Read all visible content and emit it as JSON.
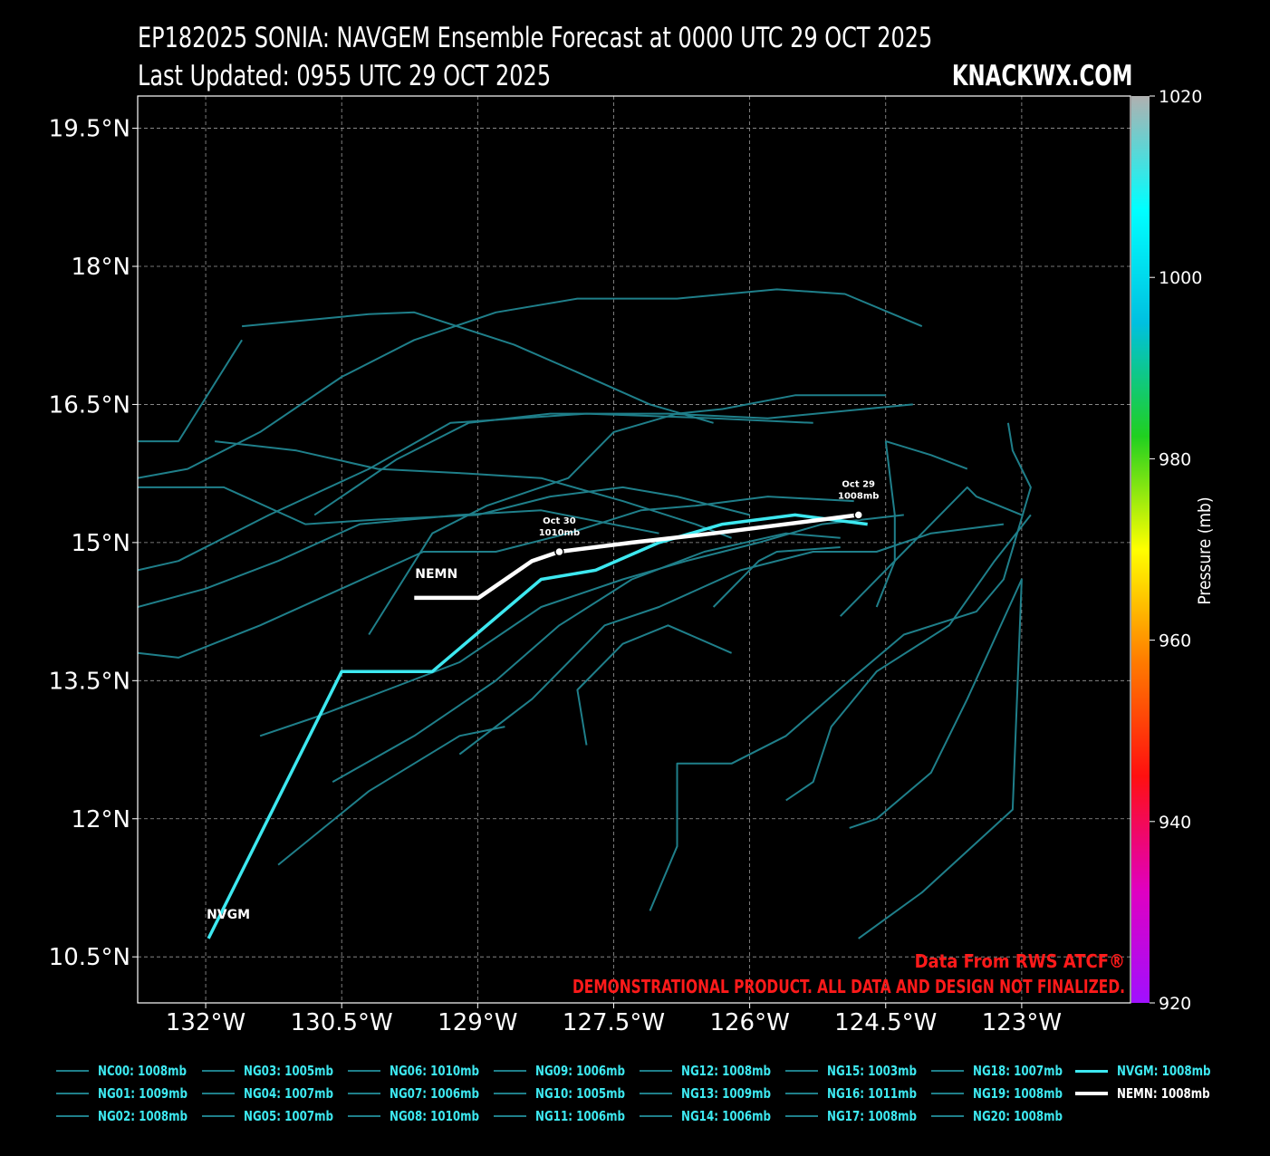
{
  "header": {
    "title_line1": "EP182025 SONIA: NAVGEM Ensemble Forecast at 0000 UTC 29 OCT 2025",
    "title_line2": "Last Updated: 0955 UTC 29 OCT 2025",
    "brand": "KNACKWX.COM"
  },
  "map": {
    "lon_range": [
      -132.75,
      -121.8
    ],
    "lat_range": [
      10.0,
      19.85
    ],
    "lon_ticks": [
      {
        "value": -132.0,
        "label": "132°W"
      },
      {
        "value": -130.5,
        "label": "130.5°W"
      },
      {
        "value": -129.0,
        "label": "129°W"
      },
      {
        "value": -127.5,
        "label": "127.5°W"
      },
      {
        "value": -126.0,
        "label": "126°W"
      },
      {
        "value": -124.5,
        "label": "124.5°W"
      },
      {
        "value": -123.0,
        "label": "123°W"
      }
    ],
    "lat_ticks": [
      {
        "value": 19.5,
        "label": "19.5°N"
      },
      {
        "value": 18.0,
        "label": "18°N"
      },
      {
        "value": 16.5,
        "label": "16.5°N"
      },
      {
        "value": 15.0,
        "label": "15°N"
      },
      {
        "value": 13.5,
        "label": "13.5°N"
      },
      {
        "value": 12.0,
        "label": "12°N"
      },
      {
        "value": 10.5,
        "label": "10.5°N"
      }
    ],
    "grid": true,
    "ensemble_color": "#1f7f8a",
    "nvgm_color": "#3de8f0",
    "nemn_color": "#ffffff",
    "ensemble_tracks": [
      [
        [
          -124.5,
          16.1
        ],
        [
          -124.0,
          15.95
        ],
        [
          -123.6,
          15.8
        ]
      ],
      [
        [
          -123.15,
          16.3
        ],
        [
          -123.1,
          16.0
        ],
        [
          -122.9,
          15.6
        ],
        [
          -123.2,
          14.6
        ],
        [
          -123.5,
          14.25
        ],
        [
          -124.3,
          14.0
        ],
        [
          -124.9,
          13.5
        ],
        [
          -125.6,
          12.9
        ],
        [
          -126.2,
          12.6
        ],
        [
          -126.8,
          12.6
        ],
        [
          -126.8,
          11.7
        ],
        [
          -127.1,
          11.0
        ]
      ],
      [
        [
          -128.7,
          13.0
        ],
        [
          -129.2,
          12.9
        ],
        [
          -130.2,
          12.3
        ],
        [
          -130.7,
          11.9
        ],
        [
          -131.2,
          11.5
        ]
      ],
      [
        [
          -127.8,
          12.8
        ],
        [
          -127.9,
          13.4
        ],
        [
          -127.4,
          13.9
        ],
        [
          -126.9,
          14.1
        ],
        [
          -126.2,
          13.8
        ]
      ],
      [
        [
          -122.9,
          15.3
        ],
        [
          -123.3,
          14.8
        ],
        [
          -123.8,
          14.1
        ],
        [
          -124.6,
          13.6
        ],
        [
          -125.1,
          13.0
        ],
        [
          -125.3,
          12.4
        ],
        [
          -125.6,
          12.2
        ]
      ],
      [
        [
          -124.9,
          11.9
        ],
        [
          -124.6,
          12.0
        ],
        [
          -124.0,
          12.5
        ],
        [
          -123.6,
          13.3
        ],
        [
          -123.0,
          14.6
        ],
        [
          -123.1,
          12.1
        ],
        [
          -124.1,
          11.2
        ],
        [
          -124.8,
          10.7
        ]
      ],
      [
        [
          -124.5,
          16.1
        ],
        [
          -124.4,
          15.3
        ],
        [
          -124.4,
          14.8
        ],
        [
          -124.6,
          14.3
        ]
      ],
      [
        [
          -125.0,
          14.2
        ],
        [
          -124.0,
          15.2
        ],
        [
          -123.6,
          15.6
        ],
        [
          -123.5,
          15.5
        ],
        [
          -123.0,
          15.3
        ]
      ],
      [
        [
          -131.6,
          17.2
        ],
        [
          -132.3,
          16.1
        ],
        [
          -132.75,
          16.1
        ]
      ],
      [
        [
          -131.9,
          16.1
        ],
        [
          -131.0,
          16.0
        ],
        [
          -130.1,
          15.8
        ],
        [
          -129.1,
          15.75
        ],
        [
          -128.3,
          15.7
        ],
        [
          -127.4,
          15.45
        ],
        [
          -126.6,
          15.2
        ],
        [
          -126.2,
          15.05
        ]
      ],
      [
        [
          -132.75,
          15.6
        ],
        [
          -131.8,
          15.6
        ],
        [
          -130.9,
          15.2
        ],
        [
          -130.1,
          15.25
        ],
        [
          -129.0,
          15.3
        ],
        [
          -128.2,
          15.5
        ],
        [
          -127.4,
          15.6
        ],
        [
          -126.8,
          15.5
        ],
        [
          -126.0,
          15.3
        ]
      ],
      [
        [
          -132.75,
          14.7
        ],
        [
          -132.3,
          14.8
        ],
        [
          -131.3,
          15.3
        ],
        [
          -130.2,
          15.8
        ],
        [
          -129.3,
          16.3
        ],
        [
          -127.8,
          16.4
        ],
        [
          -126.4,
          16.35
        ],
        [
          -125.3,
          16.3
        ]
      ],
      [
        [
          -132.75,
          14.3
        ],
        [
          -132.0,
          14.5
        ],
        [
          -131.2,
          14.8
        ],
        [
          -130.3,
          15.2
        ],
        [
          -129.2,
          15.3
        ],
        [
          -128.3,
          15.35
        ],
        [
          -127.0,
          15.1
        ]
      ],
      [
        [
          -132.75,
          13.8
        ],
        [
          -132.3,
          13.75
        ],
        [
          -131.4,
          14.1
        ],
        [
          -130.5,
          14.5
        ],
        [
          -129.6,
          14.9
        ],
        [
          -128.8,
          14.9
        ],
        [
          -128.0,
          15.1
        ],
        [
          -127.2,
          15.35
        ],
        [
          -126.6,
          15.4
        ],
        [
          -125.8,
          15.5
        ],
        [
          -124.85,
          15.45
        ]
      ],
      [
        [
          -131.4,
          12.9
        ],
        [
          -130.8,
          13.1
        ],
        [
          -130.0,
          13.4
        ],
        [
          -129.2,
          13.7
        ],
        [
          -128.3,
          14.3
        ],
        [
          -127.4,
          14.6
        ],
        [
          -126.7,
          14.8
        ],
        [
          -125.9,
          15.0
        ],
        [
          -125.2,
          15.2
        ],
        [
          -124.3,
          15.3
        ]
      ],
      [
        [
          -130.6,
          12.4
        ],
        [
          -129.7,
          12.9
        ],
        [
          -128.8,
          13.5
        ],
        [
          -128.1,
          14.1
        ],
        [
          -127.3,
          14.6
        ],
        [
          -126.5,
          14.9
        ],
        [
          -125.6,
          15.1
        ],
        [
          -125.0,
          15.05
        ]
      ],
      [
        [
          -130.8,
          15.3
        ],
        [
          -129.9,
          15.9
        ],
        [
          -129.1,
          16.3
        ],
        [
          -128.2,
          16.4
        ],
        [
          -126.9,
          16.4
        ],
        [
          -125.8,
          16.35
        ],
        [
          -124.2,
          16.5
        ]
      ],
      [
        [
          -130.2,
          14.0
        ],
        [
          -129.5,
          15.1
        ],
        [
          -128.9,
          15.4
        ],
        [
          -128.0,
          15.7
        ],
        [
          -127.5,
          16.2
        ],
        [
          -126.8,
          16.4
        ],
        [
          -126.3,
          16.45
        ],
        [
          -125.5,
          16.6
        ],
        [
          -124.5,
          16.6
        ]
      ],
      [
        [
          -129.2,
          12.7
        ],
        [
          -128.4,
          13.3
        ],
        [
          -127.6,
          14.1
        ],
        [
          -127.0,
          14.3
        ],
        [
          -126.1,
          14.7
        ],
        [
          -125.3,
          14.9
        ],
        [
          -124.6,
          14.9
        ],
        [
          -124.0,
          15.1
        ],
        [
          -123.2,
          15.2
        ]
      ],
      [
        [
          -126.4,
          14.3
        ],
        [
          -125.9,
          14.8
        ],
        [
          -125.7,
          14.9
        ],
        [
          -125.0,
          14.95
        ]
      ],
      [
        [
          -132.75,
          15.7
        ],
        [
          -132.2,
          15.8
        ],
        [
          -131.4,
          16.2
        ],
        [
          -130.5,
          16.8
        ],
        [
          -129.7,
          17.2
        ],
        [
          -128.8,
          17.5
        ],
        [
          -127.9,
          17.65
        ],
        [
          -126.8,
          17.65
        ],
        [
          -125.7,
          17.75
        ],
        [
          -124.95,
          17.7
        ],
        [
          -124.1,
          17.35
        ]
      ],
      [
        [
          -131.6,
          17.35
        ],
        [
          -130.2,
          17.48
        ],
        [
          -129.7,
          17.5
        ],
        [
          -128.6,
          17.15
        ],
        [
          -127.9,
          16.85
        ],
        [
          -127.1,
          16.5
        ],
        [
          -126.4,
          16.3
        ]
      ]
    ],
    "nvgm_track": [
      [
        -131.97,
        10.7
      ],
      [
        -130.5,
        13.6
      ],
      [
        -129.5,
        13.6
      ],
      [
        -128.3,
        14.6
      ],
      [
        -127.7,
        14.7
      ],
      [
        -127.0,
        15.0
      ],
      [
        -126.3,
        15.2
      ],
      [
        -125.5,
        15.3
      ],
      [
        -124.7,
        15.2
      ]
    ],
    "nemn_track": [
      [
        -129.7,
        14.4
      ],
      [
        -128.99,
        14.4
      ],
      [
        -128.4,
        14.8
      ],
      [
        -128.1,
        14.9
      ],
      [
        -127.3,
        15.0
      ],
      [
        -126.4,
        15.1
      ],
      [
        -124.8,
        15.3
      ]
    ],
    "nemn_points": [
      {
        "lon": -128.1,
        "lat": 14.9,
        "line1": "Oct 30",
        "line2": "1010mb"
      },
      {
        "lon": -124.8,
        "lat": 15.3,
        "line1": "Oct 29",
        "line2": "1008mb"
      }
    ],
    "track_labels": {
      "nvgm": "NVGM",
      "nemn": "NEMN"
    }
  },
  "colorbar": {
    "label": "Pressure (mb)",
    "range": [
      920,
      1020
    ],
    "ticks": [
      "920",
      "940",
      "960",
      "980",
      "1000",
      "1020"
    ],
    "stops": [
      "#a010ff",
      "#e000c0",
      "#ff1010",
      "#ff7a00",
      "#ffff00",
      "#20d020",
      "#00c0e0",
      "#00ffff",
      "#b0b0b0"
    ]
  },
  "credits": {
    "line1": "Data From RWS ATCF®",
    "line2": "DEMONSTRATIONAL PRODUCT. ALL DATA AND DESIGN NOT FINALIZED.",
    "color": "#ff1a1a"
  },
  "legend": {
    "columns": [
      [
        "NC00: 1008mb",
        "NG01: 1009mb",
        "NG02: 1008mb"
      ],
      [
        "NG03: 1005mb",
        "NG04: 1007mb",
        "NG05: 1007mb"
      ],
      [
        "NG06: 1010mb",
        "NG07: 1006mb",
        "NG08: 1010mb"
      ],
      [
        "NG09: 1006mb",
        "NG10: 1005mb",
        "NG11: 1006mb"
      ],
      [
        "NG12: 1008mb",
        "NG13: 1009mb",
        "NG14: 1006mb"
      ],
      [
        "NG15: 1003mb",
        "NG16: 1011mb",
        "NG17: 1008mb"
      ],
      [
        "NG18: 1007mb",
        "NG19: 1008mb",
        "NG20: 1008mb"
      ]
    ],
    "nvgm": "NVGM: 1008mb",
    "nemn": "NEMN: 1008mb"
  }
}
